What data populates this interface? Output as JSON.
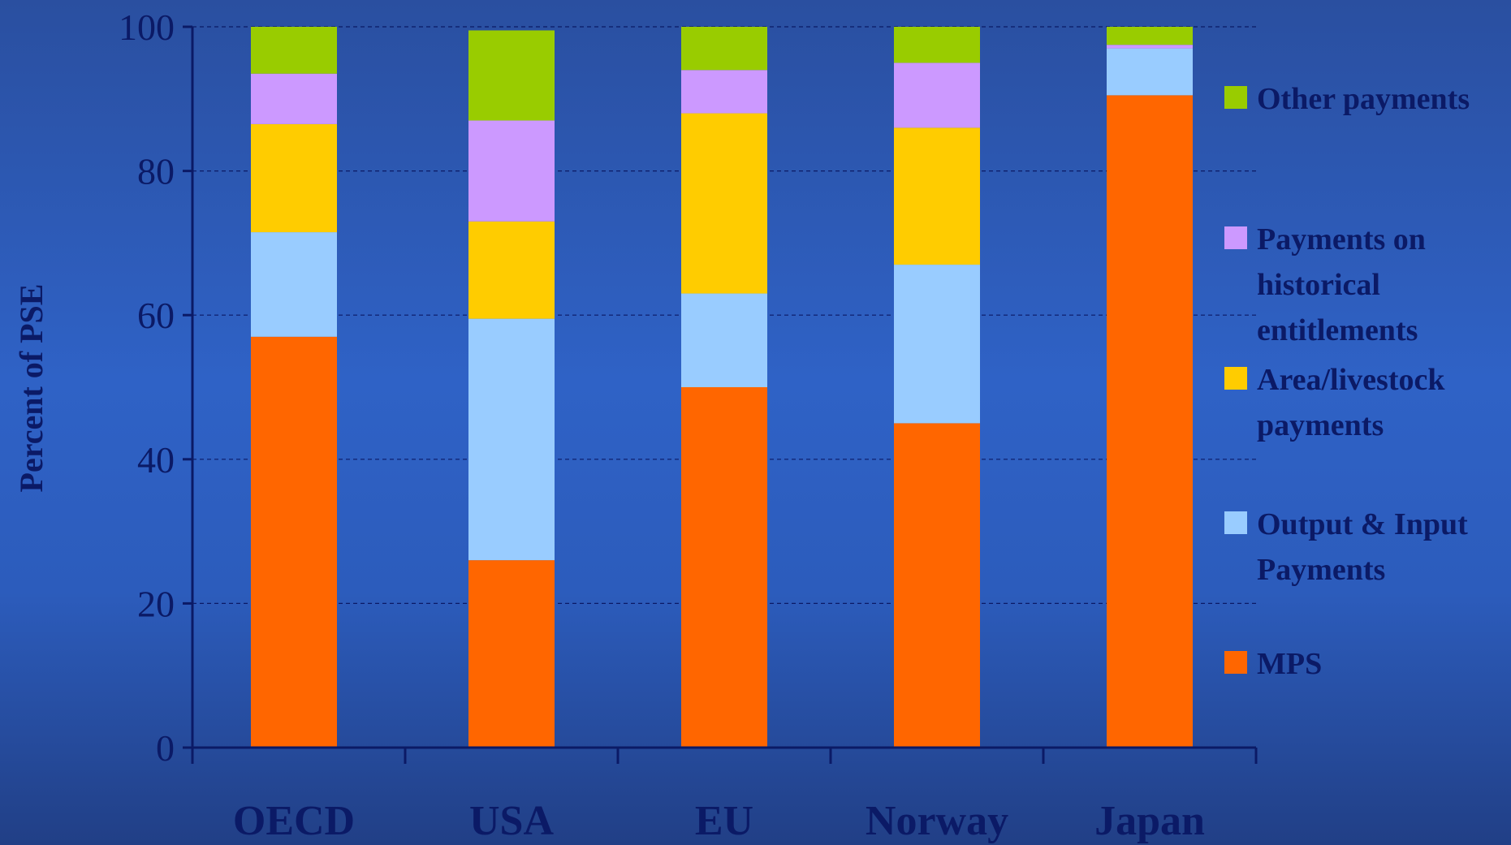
{
  "chart_data": {
    "type": "bar",
    "stacked": true,
    "categories": [
      "OECD",
      "USA",
      "EU",
      "Norway",
      "Japan"
    ],
    "ylabel": "Percent of PSE",
    "xlabel": "",
    "ylim": [
      0,
      100
    ],
    "yticks": [
      0,
      20,
      40,
      60,
      80,
      100
    ],
    "grid": true,
    "legend_position": "right",
    "series": [
      {
        "name": "MPS",
        "color": "#ff6600",
        "values": [
          57,
          26,
          50,
          45,
          90.5
        ]
      },
      {
        "name": "Output & Input Payments",
        "color": "#99ccff",
        "values": [
          14.5,
          33.5,
          13,
          22,
          6.5
        ]
      },
      {
        "name": "Area/livestock payments",
        "color": "#ffcc00",
        "values": [
          15,
          13.5,
          25,
          19,
          0
        ]
      },
      {
        "name": "Payments on historical entitlements",
        "color": "#cc99ff",
        "values": [
          7,
          14,
          6,
          9,
          0.5
        ]
      },
      {
        "name": "Other payments",
        "color": "#99cc00",
        "values": [
          6.5,
          12.5,
          6,
          5,
          2.5
        ]
      }
    ]
  },
  "legend": {
    "items": [
      {
        "lines": [
          "Other payments"
        ],
        "color": "#99cc00"
      },
      {
        "lines": [
          "Payments on",
          "historical",
          "entitlements"
        ],
        "color": "#cc99ff"
      },
      {
        "lines": [
          "Area/livestock",
          "payments"
        ],
        "color": "#ffcc00"
      },
      {
        "lines": [
          "Output & Input",
          "Payments"
        ],
        "color": "#99ccff"
      },
      {
        "lines": [
          "MPS"
        ],
        "color": "#ff6600"
      }
    ]
  }
}
